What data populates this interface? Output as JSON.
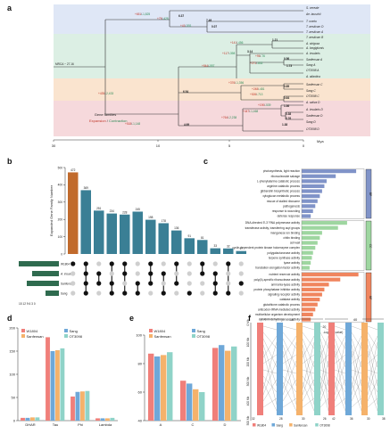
{
  "panels": {
    "a": "a",
    "b": "b",
    "c": "c",
    "d": "d",
    "e": "e",
    "f": "f"
  },
  "panel_a": {
    "mrca_label": "MRCA ~ 27.16",
    "xlabel": "Mya",
    "ticks": [
      {
        "label": "30",
        "x": 60
      },
      {
        "label": "10",
        "x": 177
      },
      {
        "label": "5",
        "x": 257
      },
      {
        "label": "0",
        "x": 340
      }
    ],
    "legend_title": "Gene families",
    "legend_expansion": "Expansion",
    "legend_slash": " / ",
    "legend_contraction": "Contraction",
    "node_ages": [
      {
        "label": "6.37",
        "x": 200,
        "y": 19
      },
      {
        "label": "7.49",
        "x": 231,
        "y": 24
      },
      {
        "label": "0.07",
        "x": 237,
        "y": 31
      },
      {
        "label": "1.21",
        "x": 305,
        "y": 46
      },
      {
        "label": "3.14",
        "x": 277,
        "y": 59
      },
      {
        "label": "0.56",
        "x": 318,
        "y": 67
      },
      {
        "label": "1.73",
        "x": 321,
        "y": 75
      },
      {
        "label": "6.54",
        "x": 205,
        "y": 104
      },
      {
        "label": "0.85",
        "x": 318,
        "y": 98
      },
      {
        "label": "0.64",
        "x": 318,
        "y": 111
      },
      {
        "label": "1.36",
        "x": 318,
        "y": 120
      },
      {
        "label": "0.38",
        "x": 320,
        "y": 129
      },
      {
        "label": "0.76",
        "x": 320,
        "y": 134
      },
      {
        "label": "1.38",
        "x": 316,
        "y": 141
      },
      {
        "label": "4.69",
        "x": 206,
        "y": 141
      }
    ],
    "branch_counts": [
      {
        "exp": "+651",
        "con": "-1,825",
        "x": 151,
        "y": 17
      },
      {
        "exp": "+75",
        "con": "-428",
        "x": 176,
        "y": 22
      },
      {
        "exp": "+41",
        "con": "-551",
        "x": 202,
        "y": 30
      },
      {
        "exp": "+141",
        "con": "-456",
        "x": 258,
        "y": 49
      },
      {
        "exp": "+117",
        "con": "-398",
        "x": 249,
        "y": 61
      },
      {
        "exp": "+95",
        "con": "-76",
        "x": 286,
        "y": 64
      },
      {
        "exp": "+271",
        "con": "-832",
        "x": 280,
        "y": 72
      },
      {
        "exp": "+844",
        "con": "-557",
        "x": 226,
        "y": 75
      },
      {
        "exp": "+376",
        "con": "-1,356",
        "x": 256,
        "y": 94
      },
      {
        "exp": "+435",
        "con": "-2,433",
        "x": 110,
        "y": 106
      },
      {
        "exp": "+248",
        "con": "-481",
        "x": 282,
        "y": 101
      },
      {
        "exp": "+526",
        "con": "-713",
        "x": 280,
        "y": 107
      },
      {
        "exp": "+190",
        "con": "-539",
        "x": 289,
        "y": 119
      },
      {
        "exp": "+447",
        "con": "-1,468",
        "x": 272,
        "y": 126
      },
      {
        "exp": "+764",
        "con": "-2,238",
        "x": 248,
        "y": 133
      },
      {
        "exp": "+518",
        "con": "-1,148",
        "x": 140,
        "y": 140
      }
    ],
    "taxa": [
      {
        "label": "S. cereale",
        "y": 9
      },
      {
        "label": "Ae. tauschii",
        "y": 16
      },
      {
        "label": "T. urartu",
        "y": 24
      },
      {
        "label": "T. aestivum D",
        "y": 30
      },
      {
        "label": "T. aestivum A",
        "y": 36
      },
      {
        "label": "T. aestivum B",
        "y": 42
      },
      {
        "label": "A. strigosa",
        "y": 49
      },
      {
        "label": "A. longiglumis",
        "y": 54
      },
      {
        "label": "A. insularis",
        "y": 60
      },
      {
        "label": "Sanfensan A",
        "y": 67
      },
      {
        "label": "Sang A",
        "y": 73
      },
      {
        "label": "OT3098 A",
        "y": 79
      },
      {
        "label": "A. atlantica",
        "y": 86
      },
      {
        "label": "Sanfensan C",
        "y": 95
      },
      {
        "label": "Sang C",
        "y": 102
      },
      {
        "label": "OT3098 C",
        "y": 108
      },
      {
        "label": "A. sativa D",
        "y": 115
      },
      {
        "label": "A. insularis D",
        "y": 123
      },
      {
        "label": "Sanfensan D",
        "y": 130
      },
      {
        "label": "Sang D",
        "y": 137
      },
      {
        "label": "OT3098 D",
        "y": 145
      }
    ]
  },
  "panel_b": {
    "ylabel": "Expanded Gene Family Number",
    "yticks": [
      {
        "label": "0",
        "v": 0
      },
      {
        "label": "100",
        "v": 100
      },
      {
        "label": "200",
        "v": 200
      },
      {
        "label": "300",
        "v": 300
      },
      {
        "label": "400",
        "v": 400
      },
      {
        "label": "500",
        "v": 500
      }
    ],
    "bars": [
      {
        "value": 472,
        "label": "472"
      },
      {
        "value": 369,
        "label": "369"
      },
      {
        "value": 251,
        "label": "251"
      },
      {
        "value": 234,
        "label": "234"
      },
      {
        "value": 228,
        "label": "228"
      },
      {
        "value": 245,
        "label": "245"
      },
      {
        "value": 198,
        "label": "198"
      },
      {
        "value": 178,
        "label": "178"
      },
      {
        "value": 136,
        "label": "136"
      },
      {
        "value": 91,
        "label": "91"
      },
      {
        "value": 81,
        "label": "81"
      },
      {
        "value": 33,
        "label": "33"
      },
      {
        "value": 32,
        "label": "32"
      },
      {
        "value": 17,
        "label": "17"
      }
    ],
    "sets": [
      {
        "label": "W1804",
        "size": 15
      },
      {
        "label": "A. insularis",
        "size": 10
      },
      {
        "label": "Sanfensan",
        "size": 12
      },
      {
        "label": "Sang",
        "size": 5
      }
    ],
    "set_axis_label": "15 12 9 6 3 0",
    "matrix": [
      [
        1,
        0,
        0,
        0
      ],
      [
        1,
        1,
        1,
        1
      ],
      [
        0,
        1,
        1,
        0
      ],
      [
        1,
        0,
        1,
        1
      ],
      [
        1,
        1,
        0,
        1
      ],
      [
        0,
        0,
        1,
        1
      ],
      [
        1,
        1,
        1,
        0
      ],
      [
        0,
        1,
        0,
        1
      ],
      [
        1,
        0,
        1,
        0
      ],
      [
        0,
        0,
        0,
        1
      ],
      [
        1,
        1,
        0,
        0
      ],
      [
        0,
        1,
        1,
        1
      ],
      [
        1,
        0,
        0,
        1
      ],
      [
        0,
        0,
        1,
        0
      ]
    ]
  },
  "panel_c": {
    "xlabel": "-Log10(P value)",
    "xticks": [
      {
        "label": "0",
        "v": 0
      },
      {
        "label": "20",
        "v": 20
      },
      {
        "label": "40",
        "v": 40
      }
    ],
    "groups": [
      {
        "name": "BP",
        "color": "#8093c8",
        "items": [
          {
            "term": "photosynthesis, light reaction",
            "v": 48
          },
          {
            "term": "ribonucleoside salvage",
            "v": 30
          },
          {
            "term": "L-phenylalanine catabolic process",
            "v": 22
          },
          {
            "term": "arginine catabolic process",
            "v": 20
          },
          {
            "term": "gibberellin biosynthetic process",
            "v": 18
          },
          {
            "term": "xyloglucan metabolic process",
            "v": 16
          },
          {
            "term": "rescue of stalled ribosome",
            "v": 14
          },
          {
            "term": "pathogenesis",
            "v": 12
          },
          {
            "term": "response to wounding",
            "v": 10
          },
          {
            "term": "defense response",
            "v": 8
          }
        ]
      },
      {
        "name": "CC",
        "color": "#9ed6a0",
        "items": [
          {
            "term": "DNA-directed 5'-3' RNA polymerase activity",
            "v": 40
          },
          {
            "term": "transferase activity, transferring acyl groups",
            "v": 32
          },
          {
            "term": "manganese ion binding",
            "v": 18
          },
          {
            "term": "chitin binding",
            "v": 16
          },
          {
            "term": "cell wall",
            "v": 14
          },
          {
            "term": "cyclin-dependent protein kinase holoenzyme complex",
            "v": 12
          },
          {
            "term": "polygalacturonase activity",
            "v": 10
          },
          {
            "term": "terpene synthase activity",
            "v": 9
          },
          {
            "term": "lyase activity",
            "v": 8
          },
          {
            "term": "translation elongation factor activity",
            "v": 7
          }
        ]
      },
      {
        "name": "MF",
        "color": "#f0855e",
        "items": [
          {
            "term": "nutrient reservoir activity",
            "v": 50
          },
          {
            "term": "poly(A)-specific ribonuclease activity",
            "v": 34
          },
          {
            "term": "ammonia-lyase activity",
            "v": 24
          },
          {
            "term": "protein phosphatase inhibitor activity",
            "v": 20
          },
          {
            "term": "signaling receptor activity",
            "v": 18
          },
          {
            "term": "catalase activity",
            "v": 16
          },
          {
            "term": "glutathione catabolic process",
            "v": 14
          },
          {
            "term": "anticodon-tRNA mediated activity",
            "v": 12
          },
          {
            "term": "multicellular organism development",
            "v": 10
          },
          {
            "term": "cytokinin dehydrogenase activity",
            "v": 8
          }
        ]
      }
    ]
  },
  "panel_d": {
    "legend": [
      {
        "name": "W1804",
        "color": "#f07f7a"
      },
      {
        "name": "Sang",
        "color": "#6fa8d8"
      },
      {
        "name": "Sanfensan",
        "color": "#f5b26b"
      },
      {
        "name": "OT3098",
        "color": "#8fd3c8"
      }
    ],
    "yticks": [
      {
        "label": "0",
        "v": 0
      },
      {
        "label": "50",
        "v": 50
      },
      {
        "label": "100",
        "v": 100
      },
      {
        "label": "150",
        "v": 150
      },
      {
        "label": "200",
        "v": 200
      }
    ],
    "ylim": [
      0,
      200
    ],
    "categories": [
      "DHAR",
      "Tau",
      "Phi",
      "Lambda"
    ],
    "series": [
      {
        "name": "W1804",
        "values": [
          6,
          180,
          52,
          5
        ]
      },
      {
        "name": "Sang",
        "values": [
          6,
          150,
          62,
          5
        ]
      },
      {
        "name": "Sanfensan",
        "values": [
          7,
          152,
          63,
          5
        ]
      },
      {
        "name": "OT3098",
        "values": [
          7,
          156,
          64,
          6
        ]
      }
    ]
  },
  "panel_e": {
    "legend": [
      {
        "name": "W1804",
        "color": "#f07f7a"
      },
      {
        "name": "Sang",
        "color": "#6fa8d8"
      },
      {
        "name": "Sanfensan",
        "color": "#f5b26b"
      },
      {
        "name": "OT3098",
        "color": "#8fd3c8"
      }
    ],
    "yticks": [
      {
        "label": "40",
        "v": 40
      },
      {
        "label": "60",
        "v": 60
      },
      {
        "label": "80",
        "v": 80
      },
      {
        "label": "100",
        "v": 100
      }
    ],
    "ylim": [
      40,
      100
    ],
    "categories": [
      "A",
      "C",
      "D"
    ],
    "series": [
      {
        "name": "W1804",
        "values": [
          87,
          68,
          91
        ]
      },
      {
        "name": "Sang",
        "values": [
          85,
          66,
          93
        ]
      },
      {
        "name": "Sanfensan",
        "values": [
          86,
          62,
          89
        ]
      },
      {
        "name": "OT3098",
        "values": [
          88,
          60,
          92
        ]
      }
    ]
  },
  "panel_f": {
    "group_labels": [
      "10",
      "40"
    ],
    "yticks": [
      "0 Mb",
      "100 Mb",
      "200 Mb",
      "300 Mb",
      "400 Mb",
      "500 Mb"
    ],
    "count_labels": [
      {
        "label": "32",
        "x": 282
      },
      {
        "label": "28",
        "x": 313
      },
      {
        "label": "30",
        "x": 338
      },
      {
        "label": "26",
        "x": 362
      },
      {
        "label": "42",
        "x": 372
      },
      {
        "label": "36",
        "x": 392
      },
      {
        "label": "30",
        "x": 411
      },
      {
        "label": "38",
        "x": 428
      }
    ],
    "legend": [
      {
        "name": "W1804",
        "color": "#f07f7a"
      },
      {
        "name": "Sang",
        "color": "#6fa8d8"
      },
      {
        "name": "Sanfensan",
        "color": "#f5b26b"
      },
      {
        "name": "OT3098",
        "color": "#8fd3c8"
      }
    ]
  },
  "chart_data": [
    {
      "type": "tree",
      "xlabel": "Mya",
      "mrca": 27.16
    },
    {
      "type": "bar",
      "ylabel": "Expanded Gene Family Number",
      "values": [
        472,
        369,
        251,
        234,
        228,
        245,
        198,
        178,
        136,
        91,
        81,
        33,
        32,
        17
      ]
    },
    {
      "type": "bar",
      "orientation": "horizontal",
      "xlabel": "-Log10(P value)",
      "groups": [
        "BP",
        "CC",
        "MF"
      ]
    },
    {
      "type": "bar",
      "categories": [
        "DHAR",
        "Tau",
        "Phi",
        "Lambda"
      ],
      "series": [
        {
          "name": "W1804",
          "values": [
            6,
            180,
            52,
            5
          ]
        },
        {
          "name": "Sang",
          "values": [
            6,
            150,
            62,
            5
          ]
        },
        {
          "name": "Sanfensan",
          "values": [
            7,
            152,
            63,
            5
          ]
        },
        {
          "name": "OT3098",
          "values": [
            7,
            156,
            64,
            6
          ]
        }
      ],
      "ylim": [
        0,
        200
      ]
    },
    {
      "type": "bar",
      "categories": [
        "A",
        "C",
        "D"
      ],
      "series": [
        {
          "name": "W1804",
          "values": [
            87,
            68,
            91
          ]
        },
        {
          "name": "Sang",
          "values": [
            85,
            66,
            93
          ]
        },
        {
          "name": "Sanfensan",
          "values": [
            86,
            62,
            89
          ]
        },
        {
          "name": "OT3098",
          "values": [
            88,
            60,
            92
          ]
        }
      ],
      "ylim": [
        40,
        100
      ]
    },
    {
      "type": "other",
      "group_labels": [
        "10",
        "40"
      ]
    }
  ]
}
